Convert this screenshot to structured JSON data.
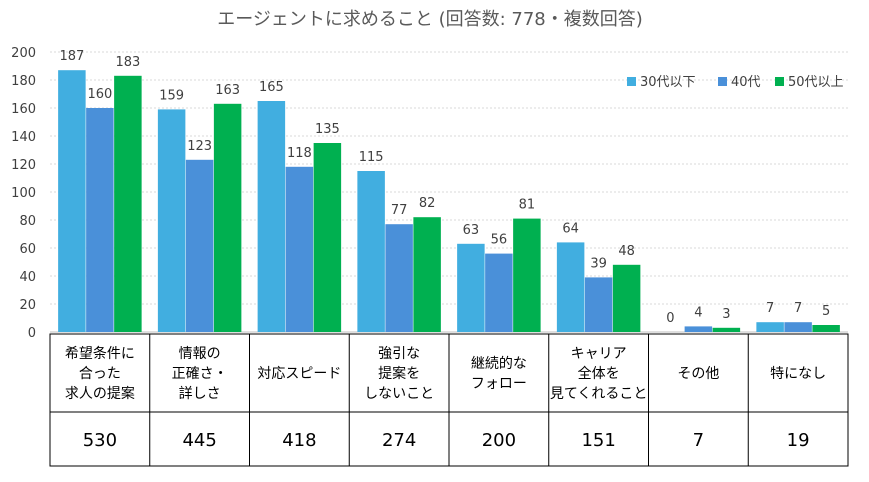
{
  "chart_data": {
    "type": "bar",
    "title": "エージェントに求めること (回答数: 778・複数回答)",
    "xlabel": "",
    "ylabel": "",
    "ylim": [
      0,
      200
    ],
    "yticks": [
      "0",
      "20",
      "40",
      "60",
      "80",
      "100",
      "120",
      "140",
      "160",
      "180",
      "200"
    ],
    "grid": true,
    "legend_position": "top-right",
    "categories": [
      [
        "希望条件に",
        "合った",
        "求人の提案"
      ],
      [
        "情報の",
        "正確さ・",
        "詳しさ"
      ],
      [
        "対応スピード"
      ],
      [
        "強引な",
        "提案を",
        "しないこと"
      ],
      [
        "継続的な",
        "フォロー"
      ],
      [
        "キャリア",
        "全体を",
        "見てくれること"
      ],
      [
        "その他"
      ],
      [
        "特になし"
      ]
    ],
    "series": [
      {
        "name": "30代以下",
        "color": "#41AEE0",
        "values": [
          187,
          159,
          165,
          115,
          63,
          64,
          0,
          7
        ]
      },
      {
        "name": "40代",
        "color": "#4A90D9",
        "values": [
          160,
          123,
          118,
          77,
          56,
          39,
          4,
          7
        ]
      },
      {
        "name": "50代以上",
        "color": "#00B050",
        "values": [
          183,
          163,
          135,
          82,
          81,
          48,
          3,
          5
        ]
      }
    ],
    "totals": [
      "530",
      "445",
      "418",
      "274",
      "200",
      "151",
      "7",
      "19"
    ]
  }
}
